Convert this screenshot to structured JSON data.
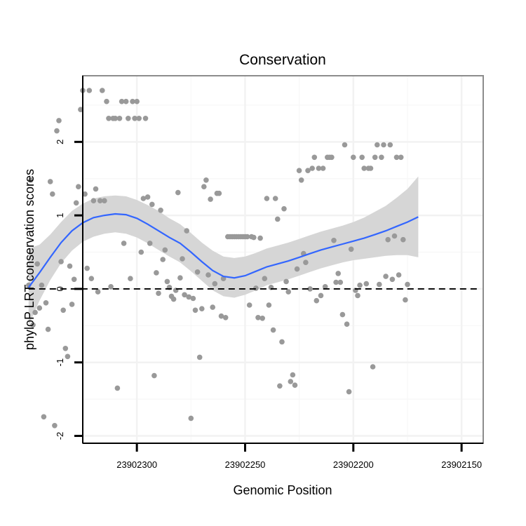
{
  "chart_data": {
    "type": "scatter",
    "title": "Conservation",
    "xlabel": "Genomic Position",
    "ylabel": "phyloP LRT conservation scores",
    "x_reversed": true,
    "xlim": [
      23902325,
      23902140
    ],
    "ylim": [
      -2.1,
      2.9
    ],
    "x_ticks": [
      23902300,
      23902250,
      23902200,
      23902150
    ],
    "y_ticks": [
      -2,
      -1,
      0,
      1,
      2
    ],
    "reference_line": {
      "y": 0,
      "style": "dashed",
      "color": "#000000"
    },
    "colors": {
      "points": "#999999",
      "smooth_line": "#3366ff",
      "confidence_band": "#d6d6d6",
      "panel_border": "#8c8c8c"
    },
    "series": [
      {
        "name": "scores",
        "points": [
          {
            "x": 23902350,
            "y": 0.05
          },
          {
            "x": 23902349,
            "y": 1.48
          },
          {
            "x": 23902348,
            "y": -0.49
          },
          {
            "x": 23902347,
            "y": -0.32
          },
          {
            "x": 23902346,
            "y": 0.34
          },
          {
            "x": 23902345,
            "y": -0.26
          },
          {
            "x": 23902344,
            "y": 0.05
          },
          {
            "x": 23902343,
            "y": -1.74
          },
          {
            "x": 23902342,
            "y": -0.19
          },
          {
            "x": 23902341,
            "y": -0.55
          },
          {
            "x": 23902340,
            "y": 1.46
          },
          {
            "x": 23902339,
            "y": 1.29
          },
          {
            "x": 23902338,
            "y": -1.86
          },
          {
            "x": 23902337,
            "y": 2.15
          },
          {
            "x": 23902336,
            "y": 2.29
          },
          {
            "x": 23902335,
            "y": 0.37
          },
          {
            "x": 23902334,
            "y": -0.29
          },
          {
            "x": 23902333,
            "y": -0.81
          },
          {
            "x": 23902332,
            "y": -0.92
          },
          {
            "x": 23902331,
            "y": 0.31
          },
          {
            "x": 23902330,
            "y": -0.21
          },
          {
            "x": 23902329,
            "y": 0.13
          },
          {
            "x": 23902328,
            "y": 1.17
          },
          {
            "x": 23902327,
            "y": 1.39
          },
          {
            "x": 23902326,
            "y": 2.44
          },
          {
            "x": 23902325,
            "y": 2.7
          },
          {
            "x": 23902324,
            "y": 1.29
          },
          {
            "x": 23902323,
            "y": 0.28
          },
          {
            "x": 23902322,
            "y": 2.7
          },
          {
            "x": 23902321,
            "y": 0.14
          },
          {
            "x": 23902320,
            "y": 1.2
          },
          {
            "x": 23902319,
            "y": 1.36
          },
          {
            "x": 23902318,
            "y": -0.04
          },
          {
            "x": 23902317,
            "y": 1.2
          },
          {
            "x": 23902316,
            "y": 2.7
          },
          {
            "x": 23902315,
            "y": 1.2
          },
          {
            "x": 23902314,
            "y": 2.55
          },
          {
            "x": 23902313,
            "y": 2.32
          },
          {
            "x": 23902312,
            "y": 0.03
          },
          {
            "x": 23902311,
            "y": 2.32
          },
          {
            "x": 23902310,
            "y": 2.32
          },
          {
            "x": 23902309,
            "y": -1.35
          },
          {
            "x": 23902308,
            "y": 2.32
          },
          {
            "x": 23902307,
            "y": 2.55
          },
          {
            "x": 23902306,
            "y": 0.62
          },
          {
            "x": 23902305,
            "y": 2.55
          },
          {
            "x": 23902304,
            "y": 2.32
          },
          {
            "x": 23902303,
            "y": 0.14
          },
          {
            "x": 23902302,
            "y": 2.55
          },
          {
            "x": 23902301,
            "y": 2.32
          },
          {
            "x": 23902300,
            "y": 2.55
          },
          {
            "x": 23902299,
            "y": 2.32
          },
          {
            "x": 23902298,
            "y": 0.5
          },
          {
            "x": 23902297,
            "y": 1.23
          },
          {
            "x": 23902296,
            "y": 2.32
          },
          {
            "x": 23902295,
            "y": 1.25
          },
          {
            "x": 23902294,
            "y": 0.62
          },
          {
            "x": 23902293,
            "y": 1.15
          },
          {
            "x": 23902292,
            "y": -1.18
          },
          {
            "x": 23902291,
            "y": 0.22
          },
          {
            "x": 23902290,
            "y": -0.06
          },
          {
            "x": 23902289,
            "y": 1.07
          },
          {
            "x": 23902288,
            "y": 0.4
          },
          {
            "x": 23902287,
            "y": 0.53
          },
          {
            "x": 23902286,
            "y": 0.1
          },
          {
            "x": 23902285,
            "y": 0.02
          },
          {
            "x": 23902284,
            "y": -0.1
          },
          {
            "x": 23902283,
            "y": -0.14
          },
          {
            "x": 23902282,
            "y": -0.02
          },
          {
            "x": 23902281,
            "y": 1.31
          },
          {
            "x": 23902280,
            "y": 0.15
          },
          {
            "x": 23902279,
            "y": 0.41
          },
          {
            "x": 23902278,
            "y": -0.08
          },
          {
            "x": 23902277,
            "y": 0.79
          },
          {
            "x": 23902276,
            "y": -0.11
          },
          {
            "x": 23902275,
            "y": -1.76
          },
          {
            "x": 23902274,
            "y": -0.13
          },
          {
            "x": 23902273,
            "y": -0.29
          },
          {
            "x": 23902272,
            "y": 0.23
          },
          {
            "x": 23902271,
            "y": -0.93
          },
          {
            "x": 23902270,
            "y": -0.27
          },
          {
            "x": 23902269,
            "y": 1.39
          },
          {
            "x": 23902268,
            "y": 1.48
          },
          {
            "x": 23902267,
            "y": 0.19
          },
          {
            "x": 23902266,
            "y": 1.22
          },
          {
            "x": 23902265,
            "y": -0.25
          },
          {
            "x": 23902264,
            "y": 0.07
          },
          {
            "x": 23902263,
            "y": 1.3
          },
          {
            "x": 23902262,
            "y": 1.3
          },
          {
            "x": 23902261,
            "y": -0.37
          },
          {
            "x": 23902260,
            "y": 0.14
          },
          {
            "x": 23902259,
            "y": -0.39
          },
          {
            "x": 23902258,
            "y": 0.71
          },
          {
            "x": 23902257,
            "y": 0.71
          },
          {
            "x": 23902256,
            "y": 0.71
          },
          {
            "x": 23902255,
            "y": 0.71
          },
          {
            "x": 23902254,
            "y": 0.71
          },
          {
            "x": 23902253,
            "y": 0.71
          },
          {
            "x": 23902252,
            "y": 0.71
          },
          {
            "x": 23902251,
            "y": 0.71
          },
          {
            "x": 23902250,
            "y": 0.71
          },
          {
            "x": 23902249,
            "y": 0.71
          },
          {
            "x": 23902248,
            "y": -0.22
          },
          {
            "x": 23902247,
            "y": 0.71
          },
          {
            "x": 23902246,
            "y": 0.7
          },
          {
            "x": 23902245,
            "y": 0.01
          },
          {
            "x": 23902244,
            "y": -0.39
          },
          {
            "x": 23902243,
            "y": 0.69
          },
          {
            "x": 23902242,
            "y": -0.4
          },
          {
            "x": 23902241,
            "y": 0.14
          },
          {
            "x": 23902240,
            "y": 1.23
          },
          {
            "x": 23902239,
            "y": -0.22
          },
          {
            "x": 23902238,
            "y": 0.02
          },
          {
            "x": 23902237,
            "y": -0.56
          },
          {
            "x": 23902236,
            "y": 1.23
          },
          {
            "x": 23902235,
            "y": 0.95
          },
          {
            "x": 23902234,
            "y": -1.32
          },
          {
            "x": 23902233,
            "y": -0.72
          },
          {
            "x": 23902232,
            "y": 1.09
          },
          {
            "x": 23902231,
            "y": 0.1
          },
          {
            "x": 23902230,
            "y": -0.04
          },
          {
            "x": 23902229,
            "y": -1.26
          },
          {
            "x": 23902228,
            "y": -1.17
          },
          {
            "x": 23902227,
            "y": -1.31
          },
          {
            "x": 23902226,
            "y": 0.27
          },
          {
            "x": 23902225,
            "y": 1.61
          },
          {
            "x": 23902224,
            "y": 1.48
          },
          {
            "x": 23902223,
            "y": 0.48
          },
          {
            "x": 23902222,
            "y": 0.36
          },
          {
            "x": 23902221,
            "y": 1.61
          },
          {
            "x": 23902220,
            "y": 0.0
          },
          {
            "x": 23902219,
            "y": 1.64
          },
          {
            "x": 23902218,
            "y": 1.79
          },
          {
            "x": 23902217,
            "y": -0.16
          },
          {
            "x": 23902216,
            "y": 1.64
          },
          {
            "x": 23902215,
            "y": -0.09
          },
          {
            "x": 23902214,
            "y": 1.64
          },
          {
            "x": 23902213,
            "y": 0.03
          },
          {
            "x": 23902212,
            "y": 1.79
          },
          {
            "x": 23902211,
            "y": 1.79
          },
          {
            "x": 23902210,
            "y": 1.79
          },
          {
            "x": 23902209,
            "y": 0.66
          },
          {
            "x": 23902208,
            "y": 0.09
          },
          {
            "x": 23902207,
            "y": 0.21
          },
          {
            "x": 23902206,
            "y": 0.09
          },
          {
            "x": 23902205,
            "y": -0.35
          },
          {
            "x": 23902204,
            "y": 1.96
          },
          {
            "x": 23902203,
            "y": -0.48
          },
          {
            "x": 23902202,
            "y": -1.4
          },
          {
            "x": 23902201,
            "y": 0.54
          },
          {
            "x": 23902200,
            "y": 1.79
          },
          {
            "x": 23902199,
            "y": -0.02
          },
          {
            "x": 23902198,
            "y": -0.09
          },
          {
            "x": 23902197,
            "y": 0.05
          },
          {
            "x": 23902196,
            "y": 1.79
          },
          {
            "x": 23902195,
            "y": 1.64
          },
          {
            "x": 23902194,
            "y": 0.07
          },
          {
            "x": 23902193,
            "y": 1.64
          },
          {
            "x": 23902192,
            "y": 1.64
          },
          {
            "x": 23902191,
            "y": -1.06
          },
          {
            "x": 23902190,
            "y": 1.79
          },
          {
            "x": 23902189,
            "y": 1.96
          },
          {
            "x": 23902188,
            "y": 0.06
          },
          {
            "x": 23902187,
            "y": 1.79
          },
          {
            "x": 23902186,
            "y": 1.96
          },
          {
            "x": 23902185,
            "y": 0.17
          },
          {
            "x": 23902184,
            "y": 0.67
          },
          {
            "x": 23902183,
            "y": 1.96
          },
          {
            "x": 23902182,
            "y": 0.13
          },
          {
            "x": 23902181,
            "y": 0.72
          },
          {
            "x": 23902180,
            "y": 1.79
          },
          {
            "x": 23902179,
            "y": 0.19
          },
          {
            "x": 23902178,
            "y": 1.79
          },
          {
            "x": 23902177,
            "y": 0.67
          },
          {
            "x": 23902176,
            "y": -0.15
          },
          {
            "x": 23902175,
            "y": 0.06
          }
        ]
      },
      {
        "name": "smooth",
        "points": [
          {
            "x": 23902350,
            "y": 0.02,
            "lower": -0.5,
            "upper": 0.55
          },
          {
            "x": 23902345,
            "y": 0.22,
            "lower": -0.16,
            "upper": 0.6
          },
          {
            "x": 23902340,
            "y": 0.43,
            "lower": 0.12,
            "upper": 0.74
          },
          {
            "x": 23902335,
            "y": 0.63,
            "lower": 0.35,
            "upper": 0.91
          },
          {
            "x": 23902330,
            "y": 0.79,
            "lower": 0.52,
            "upper": 1.06
          },
          {
            "x": 23902325,
            "y": 0.9,
            "lower": 0.64,
            "upper": 1.16
          },
          {
            "x": 23902320,
            "y": 0.97,
            "lower": 0.71,
            "upper": 1.23
          },
          {
            "x": 23902315,
            "y": 1.0,
            "lower": 0.75,
            "upper": 1.26
          },
          {
            "x": 23902310,
            "y": 1.02,
            "lower": 0.77,
            "upper": 1.27
          },
          {
            "x": 23902305,
            "y": 1.01,
            "lower": 0.75,
            "upper": 1.26
          },
          {
            "x": 23902300,
            "y": 0.96,
            "lower": 0.7,
            "upper": 1.21
          },
          {
            "x": 23902295,
            "y": 0.88,
            "lower": 0.62,
            "upper": 1.14
          },
          {
            "x": 23902290,
            "y": 0.79,
            "lower": 0.53,
            "upper": 1.06
          },
          {
            "x": 23902285,
            "y": 0.7,
            "lower": 0.44,
            "upper": 0.96
          },
          {
            "x": 23902280,
            "y": 0.62,
            "lower": 0.36,
            "upper": 0.88
          },
          {
            "x": 23902275,
            "y": 0.5,
            "lower": 0.24,
            "upper": 0.76
          },
          {
            "x": 23902270,
            "y": 0.37,
            "lower": 0.11,
            "upper": 0.63
          },
          {
            "x": 23902265,
            "y": 0.25,
            "lower": -0.02,
            "upper": 0.52
          },
          {
            "x": 23902260,
            "y": 0.17,
            "lower": -0.1,
            "upper": 0.44
          },
          {
            "x": 23902255,
            "y": 0.15,
            "lower": -0.12,
            "upper": 0.42
          },
          {
            "x": 23902250,
            "y": 0.18,
            "lower": -0.08,
            "upper": 0.44
          },
          {
            "x": 23902245,
            "y": 0.24,
            "lower": -0.02,
            "upper": 0.49
          },
          {
            "x": 23902240,
            "y": 0.3,
            "lower": 0.05,
            "upper": 0.55
          },
          {
            "x": 23902235,
            "y": 0.34,
            "lower": 0.09,
            "upper": 0.59
          },
          {
            "x": 23902230,
            "y": 0.38,
            "lower": 0.13,
            "upper": 0.63
          },
          {
            "x": 23902225,
            "y": 0.43,
            "lower": 0.18,
            "upper": 0.68
          },
          {
            "x": 23902220,
            "y": 0.48,
            "lower": 0.23,
            "upper": 0.73
          },
          {
            "x": 23902215,
            "y": 0.53,
            "lower": 0.28,
            "upper": 0.78
          },
          {
            "x": 23902210,
            "y": 0.57,
            "lower": 0.32,
            "upper": 0.82
          },
          {
            "x": 23902205,
            "y": 0.61,
            "lower": 0.36,
            "upper": 0.86
          },
          {
            "x": 23902200,
            "y": 0.65,
            "lower": 0.39,
            "upper": 0.91
          },
          {
            "x": 23902195,
            "y": 0.69,
            "lower": 0.41,
            "upper": 0.97
          },
          {
            "x": 23902190,
            "y": 0.74,
            "lower": 0.43,
            "upper": 1.05
          },
          {
            "x": 23902185,
            "y": 0.79,
            "lower": 0.45,
            "upper": 1.13
          },
          {
            "x": 23902180,
            "y": 0.85,
            "lower": 0.46,
            "upper": 1.24
          },
          {
            "x": 23902175,
            "y": 0.91,
            "lower": 0.46,
            "upper": 1.36
          },
          {
            "x": 23902170,
            "y": 0.98,
            "lower": 0.43,
            "upper": 1.53
          }
        ]
      }
    ]
  }
}
